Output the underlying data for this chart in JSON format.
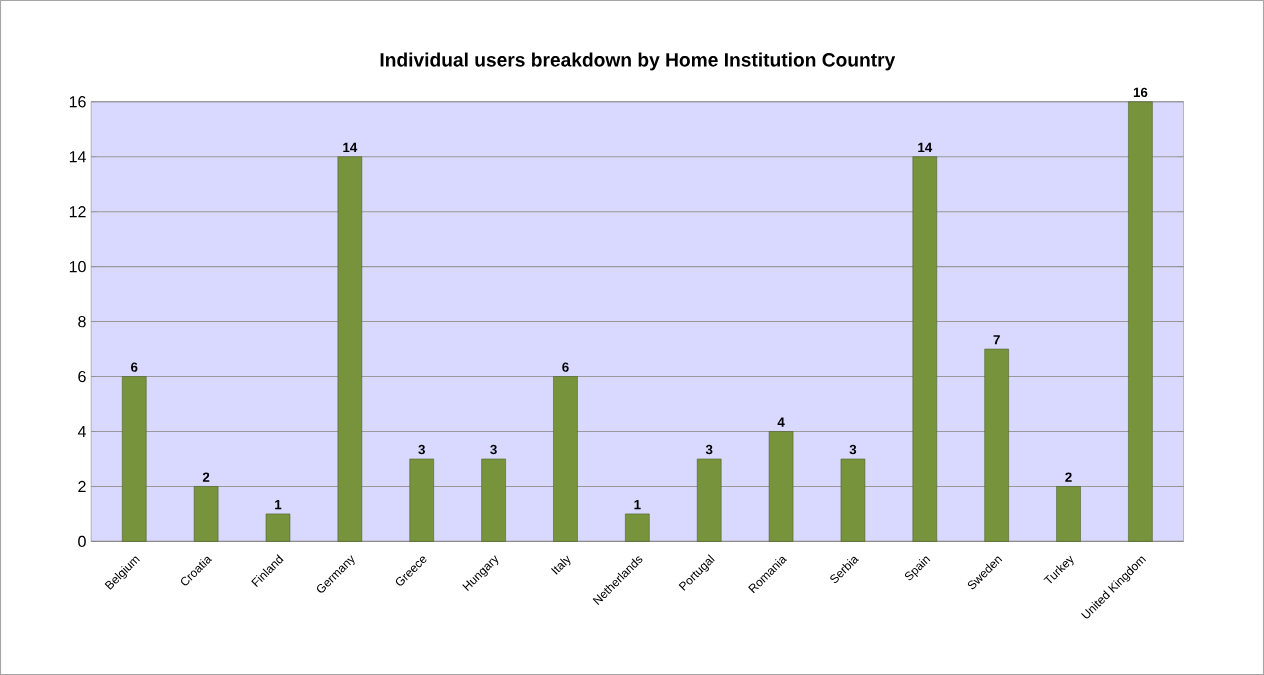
{
  "chart_data": {
    "type": "bar",
    "title": "Individual users breakdown by Home Institution Country",
    "categories": [
      "Belgium",
      "Croatia",
      "Finland",
      "Germany",
      "Greece",
      "Hungary",
      "Italy",
      "Netherlands",
      "Portugal",
      "Romania",
      "Serbia",
      "Spain",
      "Sweden",
      "Turkey",
      "United Kingdom"
    ],
    "values": [
      6,
      2,
      1,
      14,
      3,
      3,
      6,
      1,
      3,
      4,
      3,
      14,
      7,
      2,
      16
    ],
    "color": "#77933c",
    "ylim": [
      0,
      16
    ],
    "yticks": [
      0,
      2,
      4,
      6,
      8,
      10,
      12,
      14,
      16
    ],
    "grid": "y",
    "data_labels": true
  }
}
